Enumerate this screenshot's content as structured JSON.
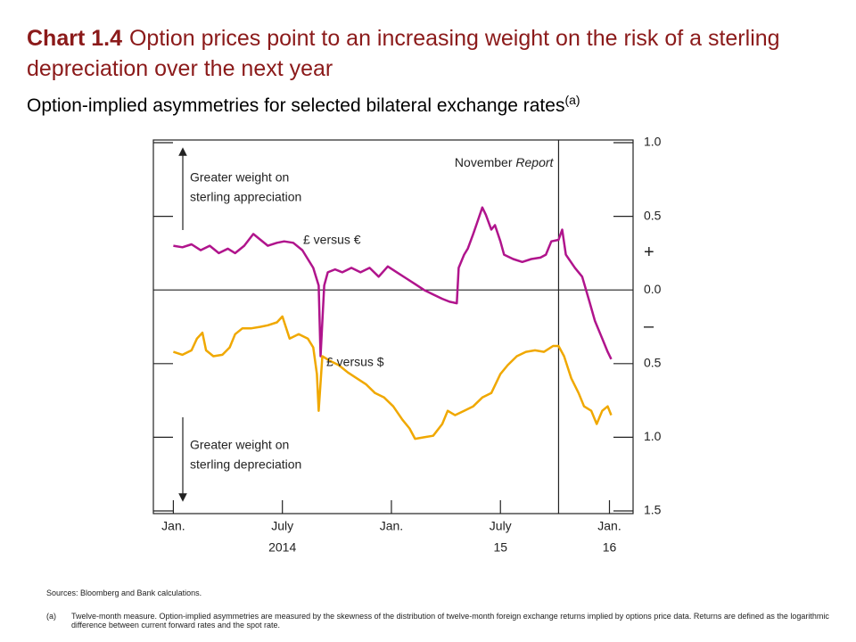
{
  "chart_data": {
    "type": "line",
    "title_label": "Chart 1.4",
    "title": "Option prices point to an increasing weight on the risk of a sterling depreciation over the next year",
    "subtitle": "Option-implied asymmetries for selected bilateral exchange rates",
    "subtitle_note": "(a)",
    "xlim": [
      -1.1,
      25.3
    ],
    "xticks": [
      {
        "value": 0,
        "label": "Jan."
      },
      {
        "value": 6,
        "label": "July"
      },
      {
        "value": 12,
        "label": "Jan."
      },
      {
        "value": 18,
        "label": "July"
      },
      {
        "value": 24,
        "label": "Jan."
      }
    ],
    "x_year_labels": [
      {
        "value": 6,
        "label": "2014"
      },
      {
        "value": 18,
        "label": "15"
      },
      {
        "value": 24,
        "label": "16"
      }
    ],
    "ylim": [
      -1.5,
      1.0
    ],
    "yticks": [
      {
        "value": 1.0,
        "label": "1.0"
      },
      {
        "value": 0.5,
        "label": "0.5"
      },
      {
        "value": 0,
        "label": "0.0"
      },
      {
        "value": -0.5,
        "label": "0.5"
      },
      {
        "value": -1.0,
        "label": "1.0"
      },
      {
        "value": -1.5,
        "label": "1.5"
      }
    ],
    "sign_labels": [
      "+",
      "–"
    ],
    "vline": {
      "value": 21.2,
      "text": "November",
      "italic_text": "Report"
    },
    "annotations": [
      {
        "lines": [
          "Greater weight on",
          "sterling appreciation"
        ]
      },
      {
        "lines": [
          "Greater weight on",
          "sterling depreciation"
        ]
      }
    ],
    "series": [
      {
        "name": "£ versus €",
        "color": "#b0148c",
        "x": [
          0.0,
          0.5,
          1.0,
          1.5,
          2.0,
          2.5,
          3.0,
          3.4,
          3.9,
          4.4,
          4.8,
          5.2,
          5.7,
          6.1,
          6.6,
          7.1,
          7.4,
          7.7,
          8.0,
          8.1,
          8.3,
          8.5,
          8.9,
          9.3,
          9.8,
          10.3,
          10.8,
          11.3,
          11.8,
          12.3,
          12.8,
          13.3,
          13.8,
          14.3,
          14.8,
          15.2,
          15.6,
          15.7,
          16.0,
          16.2,
          16.5,
          16.7,
          17.0,
          17.2,
          17.5,
          17.7,
          18.0,
          18.2,
          18.7,
          19.2,
          19.7,
          20.2,
          20.5,
          20.8,
          21.2,
          21.4,
          21.6,
          22.1,
          22.5,
          22.9,
          23.2,
          23.6,
          23.9,
          24.1
        ],
        "values": [
          0.3,
          0.29,
          0.31,
          0.27,
          0.3,
          0.25,
          0.28,
          0.25,
          0.3,
          0.38,
          0.34,
          0.3,
          0.32,
          0.33,
          0.32,
          0.27,
          0.21,
          0.15,
          0.03,
          -0.45,
          0.03,
          0.12,
          0.14,
          0.12,
          0.15,
          0.12,
          0.15,
          0.09,
          0.16,
          0.12,
          0.08,
          0.04,
          0.0,
          -0.03,
          -0.06,
          -0.08,
          -0.09,
          0.15,
          0.24,
          0.28,
          0.38,
          0.45,
          0.56,
          0.51,
          0.41,
          0.44,
          0.33,
          0.24,
          0.21,
          0.19,
          0.21,
          0.22,
          0.24,
          0.33,
          0.34,
          0.41,
          0.24,
          0.15,
          0.09,
          -0.08,
          -0.21,
          -0.33,
          -0.42,
          -0.47
        ]
      },
      {
        "name": "£ versus $",
        "color": "#f0a800",
        "x": [
          0.0,
          0.5,
          1.0,
          1.3,
          1.6,
          1.8,
          2.2,
          2.7,
          3.1,
          3.4,
          3.8,
          4.3,
          4.8,
          5.2,
          5.7,
          6.0,
          6.4,
          6.9,
          7.4,
          7.7,
          7.9,
          8.0,
          8.2,
          8.6,
          9.1,
          9.6,
          10.1,
          10.6,
          11.1,
          11.6,
          12.1,
          12.6,
          13.0,
          13.3,
          13.8,
          14.3,
          14.8,
          15.1,
          15.5,
          16.0,
          16.5,
          17.0,
          17.5,
          18.0,
          18.4,
          18.9,
          19.4,
          19.9,
          20.4,
          20.9,
          21.2,
          21.5,
          21.9,
          22.3,
          22.6,
          23.0,
          23.3,
          23.6,
          23.9,
          24.1
        ],
        "values": [
          -0.42,
          -0.44,
          -0.41,
          -0.33,
          -0.29,
          -0.41,
          -0.45,
          -0.44,
          -0.39,
          -0.3,
          -0.26,
          -0.26,
          -0.25,
          -0.24,
          -0.22,
          -0.18,
          -0.33,
          -0.3,
          -0.33,
          -0.39,
          -0.57,
          -0.82,
          -0.45,
          -0.48,
          -0.51,
          -0.56,
          -0.6,
          -0.64,
          -0.7,
          -0.73,
          -0.79,
          -0.88,
          -0.94,
          -1.01,
          -1.0,
          -0.99,
          -0.91,
          -0.82,
          -0.85,
          -0.82,
          -0.79,
          -0.73,
          -0.7,
          -0.57,
          -0.51,
          -0.45,
          -0.42,
          -0.41,
          -0.42,
          -0.38,
          -0.38,
          -0.45,
          -0.6,
          -0.7,
          -0.79,
          -0.82,
          -0.91,
          -0.82,
          -0.79,
          -0.85
        ]
      }
    ],
    "sources": "Sources: Bloomberg and Bank calculations.",
    "footnote_marker": "(a)",
    "footnote": "Twelve-month measure. Option-implied asymmetries are measured by the skewness of the distribution of twelve-month foreign exchange returns implied by options price data. Returns are defined as the logarithmic difference between current forward rates and the spot rate."
  }
}
